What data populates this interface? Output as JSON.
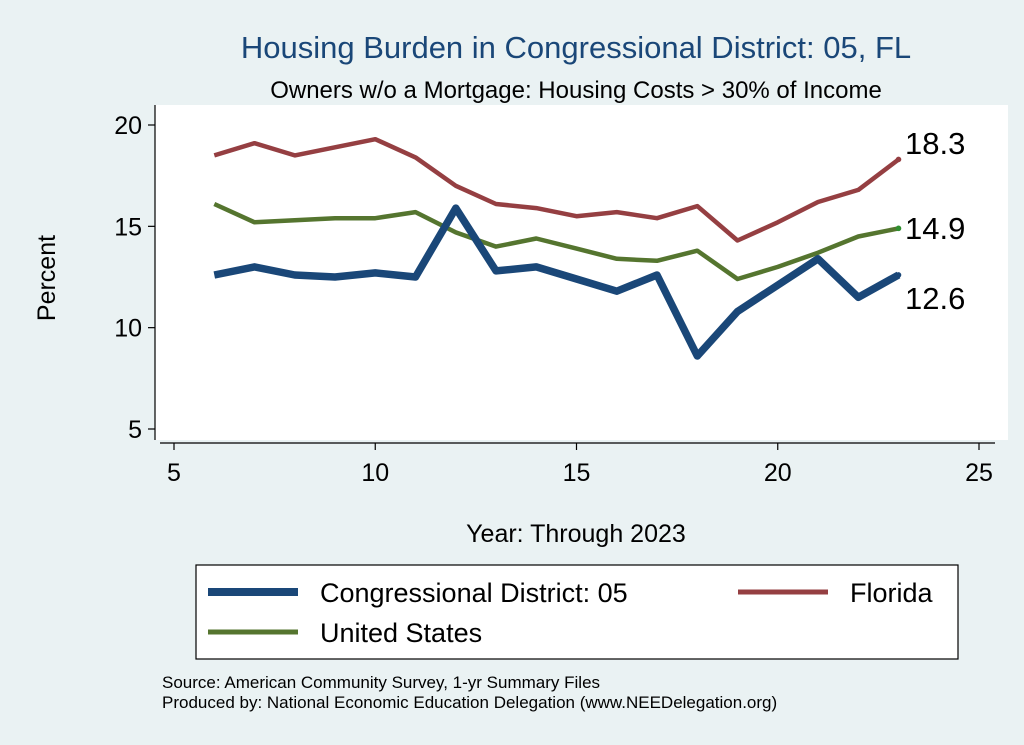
{
  "chart_data": {
    "type": "line",
    "title": "Housing Burden in Congressional District:  05, FL",
    "subtitle": "Owners w/o a Mortgage: Housing Costs > 30% of Income",
    "xlabel": "Year: Through 2023",
    "ylabel": "Percent",
    "xlim": [
      5,
      25
    ],
    "ylim": [
      5,
      20
    ],
    "xticks": [
      5,
      10,
      15,
      20,
      25
    ],
    "yticks": [
      5,
      10,
      15,
      20
    ],
    "x": [
      6,
      7,
      8,
      9,
      10,
      11,
      12,
      13,
      14,
      15,
      16,
      17,
      18,
      19,
      20,
      21,
      22,
      23
    ],
    "series": [
      {
        "name": "Congressional District:  05",
        "color": "#1a4778",
        "values": [
          12.6,
          13.0,
          12.6,
          12.5,
          12.7,
          12.5,
          15.9,
          12.8,
          13.0,
          12.4,
          11.8,
          12.6,
          8.6,
          10.8,
          12.1,
          13.4,
          11.5,
          12.6
        ],
        "end_label": "12.6"
      },
      {
        "name": "Florida",
        "color": "#953f42",
        "values": [
          18.5,
          19.1,
          18.5,
          18.9,
          19.3,
          18.4,
          17.0,
          16.1,
          15.9,
          15.5,
          15.7,
          15.4,
          16.0,
          14.3,
          15.2,
          16.2,
          16.8,
          18.3
        ],
        "end_label": "18.3"
      },
      {
        "name": "United States",
        "color": "#55752f",
        "values": [
          16.1,
          15.2,
          15.3,
          15.4,
          15.4,
          15.7,
          14.7,
          14.0,
          14.4,
          13.9,
          13.4,
          13.3,
          13.8,
          12.4,
          13.0,
          13.7,
          14.5,
          14.9
        ],
        "end_label": "14.9"
      }
    ],
    "legend": {
      "position": "bottom",
      "items": [
        "Congressional District:  05",
        "Florida",
        "United States"
      ]
    },
    "notes": [
      "Source: American Community Survey, 1-yr Summary Files",
      "Produced by: National Economic Education Delegation (www.NEEDelegation.org)"
    ]
  }
}
